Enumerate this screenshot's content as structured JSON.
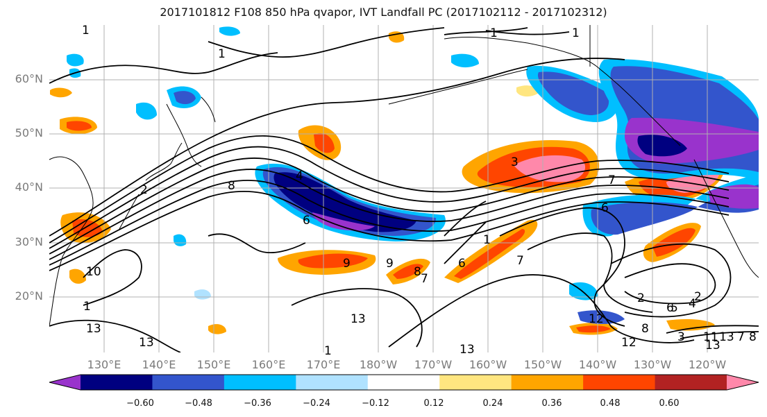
{
  "title": "2017101812 F108 850 hPa qvapor, IVT Landfall PC (2017102112 - 2017102312)",
  "lat_labels": [
    "60°N",
    "50°N",
    "40°N",
    "30°N",
    "20°N"
  ],
  "lon_labels": [
    "130°E",
    "140°E",
    "150°E",
    "160°E",
    "170°E",
    "180°W",
    "170°W",
    "160°W",
    "150°W",
    "140°W",
    "130°W",
    "120°W"
  ],
  "colorbar": {
    "colors": [
      "#9933cc",
      "#000080",
      "#3355cc",
      "#00bfff",
      "#b0e2ff",
      "#ffffff",
      "#ffe680",
      "#ffa500",
      "#ff4500",
      "#b22222",
      "#ff88aa"
    ],
    "ticks": [
      "−0.60",
      "−0.48",
      "−0.36",
      "−0.24",
      "−0.12",
      "0.12",
      "0.24",
      "0.36",
      "0.48",
      "0.60"
    ]
  },
  "contour_labels": [
    "1",
    "1",
    "1",
    "1",
    "2",
    "8",
    "4",
    "6",
    "3",
    "7",
    "6",
    "2",
    "1",
    "9",
    "9",
    "8",
    "7",
    "6",
    "7",
    "10",
    "13",
    "13",
    "1",
    "13",
    "12",
    "13",
    "13",
    "12",
    "8",
    "6",
    "5",
    "4",
    "2",
    "3",
    "11",
    "13",
    "7",
    "8",
    "1"
  ]
}
